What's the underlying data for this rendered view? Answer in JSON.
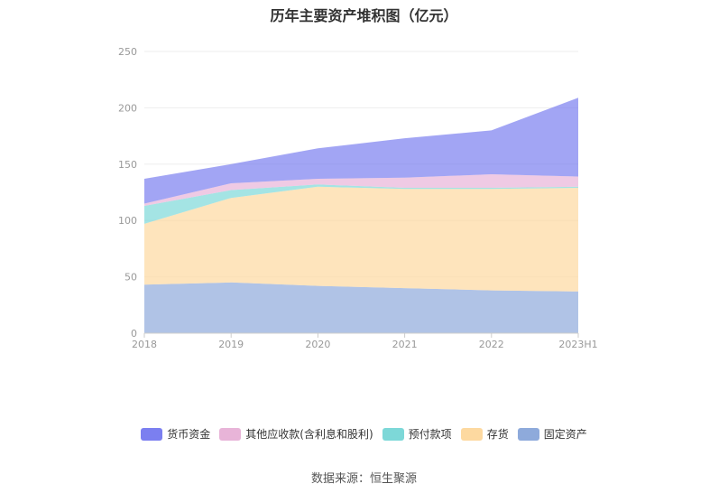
{
  "chart_data": {
    "type": "area",
    "stacked": true,
    "title": "历年主要资产堆积图（亿元）",
    "categories": [
      "2018",
      "2019",
      "2020",
      "2021",
      "2022",
      "2023H1"
    ],
    "ylim": [
      0,
      250
    ],
    "yticks": [
      "0",
      "50",
      "100",
      "150",
      "200",
      "250"
    ],
    "grid": true,
    "legend_position": "bottom",
    "series": [
      {
        "name": "固定资产",
        "color": "#8eaadb",
        "values": [
          43,
          45,
          42,
          40,
          38,
          37
        ]
      },
      {
        "name": "存货",
        "color": "#fdd9a0",
        "values": [
          54,
          75,
          88,
          88,
          90,
          92
        ]
      },
      {
        "name": "预付款项",
        "color": "#7dd8d8",
        "values": [
          16,
          7,
          2,
          1,
          1,
          1
        ]
      },
      {
        "name": "其他应收款(含利息和股利)",
        "color": "#e8b4d8",
        "values": [
          2,
          6,
          5,
          9,
          12,
          9
        ]
      },
      {
        "name": "货币资金",
        "color": "#7b7ff0",
        "values": [
          22,
          17,
          27,
          35,
          39,
          70
        ]
      }
    ],
    "legend_order": [
      "货币资金",
      "其他应收款(含利息和股利)",
      "预付款项",
      "存货",
      "固定资产"
    ]
  },
  "source": "数据来源：恒生聚源"
}
